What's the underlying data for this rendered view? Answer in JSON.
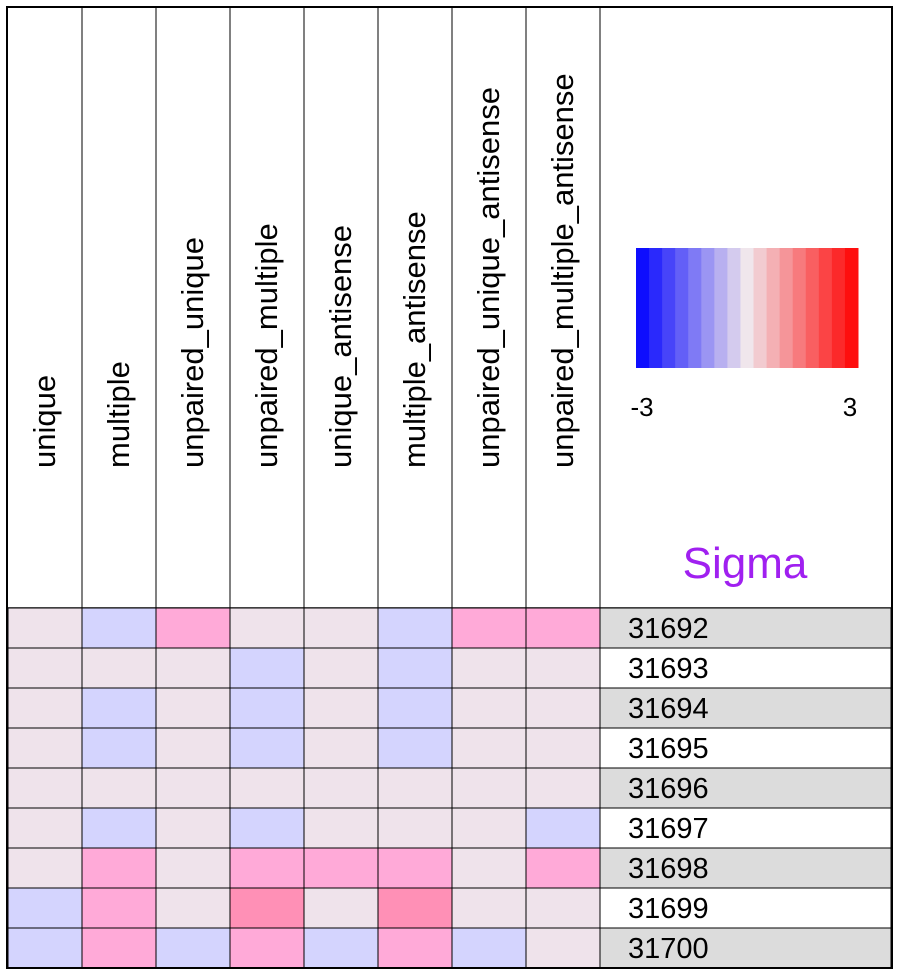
{
  "chart_data": {
    "type": "heatmap",
    "columns": [
      "unique",
      "multiple",
      "unpaired_unique",
      "unpaired_multiple",
      "unique_antisense",
      "multiple_antisense",
      "unpaired_unique_antisense",
      "unpaired_multiple_antisense"
    ],
    "rows": [
      "31692",
      "31693",
      "31694",
      "31695",
      "31696",
      "31697",
      "31698",
      "31699",
      "31700"
    ],
    "values": [
      [
        0,
        -1,
        1,
        0,
        0,
        -1,
        1,
        1
      ],
      [
        0,
        0,
        0,
        -1,
        0,
        -1,
        0,
        0
      ],
      [
        0,
        -1,
        0,
        -1,
        0,
        -1,
        0,
        0
      ],
      [
        0,
        -1,
        0,
        -1,
        0,
        -1,
        0,
        0
      ],
      [
        0,
        0,
        0,
        0,
        0,
        0,
        0,
        0
      ],
      [
        0,
        -1,
        0,
        -1,
        0,
        0,
        0,
        -1
      ],
      [
        0,
        1,
        0,
        1,
        1,
        1,
        0,
        1
      ],
      [
        -1,
        1,
        0,
        1.5,
        0,
        1.5,
        0,
        0
      ],
      [
        -1,
        1,
        -1,
        1,
        -1,
        1,
        -1,
        0
      ]
    ],
    "color_scale": {
      "title": "Sigma",
      "min": -3,
      "max": 3,
      "min_label": "-3",
      "max_label": "3",
      "low_color": "#0000ff",
      "mid_color": "#f0e6ec",
      "high_color": "#ff0000",
      "title_color": "#a020f0"
    },
    "row_stripe_colors": [
      "#dcdcdc",
      "#ffffff"
    ]
  }
}
